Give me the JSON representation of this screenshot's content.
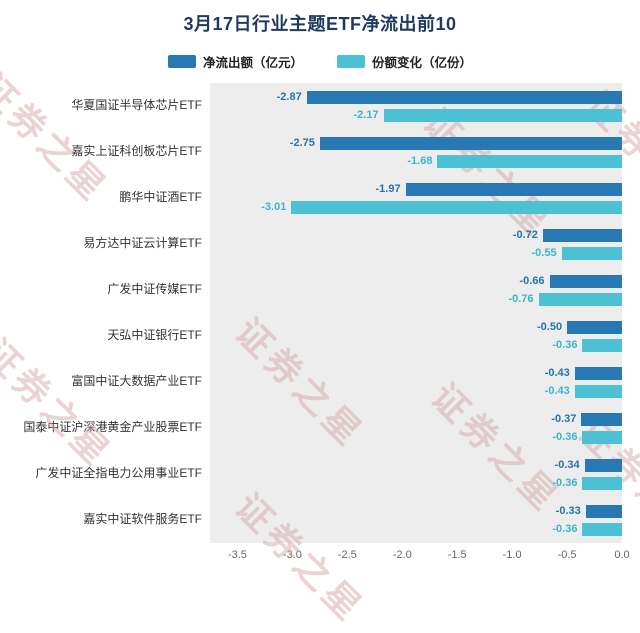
{
  "title": "3月17日行业主题ETF净流出前10",
  "watermark": "证券之星",
  "legend": [
    {
      "label": "净流出额（亿元）",
      "color": "#2878b4",
      "label_color": "#2474ab"
    },
    {
      "label": "份额变化（亿份）",
      "color": "#4cc1d4",
      "label_color": "#38b6cc"
    }
  ],
  "chart_data": {
    "type": "bar",
    "orientation": "horizontal",
    "title": "3月17日行业主题ETF净流出前10",
    "categories": [
      "华夏国证半导体芯片ETF",
      "嘉实上证科创板芯片ETF",
      "鹏华中证酒ETF",
      "易方达中证云计算ETF",
      "广发中证传媒ETF",
      "天弘中证银行ETF",
      "富国中证大数据产业ETF",
      "国泰中证沪深港黄金产业股票ETF",
      "广发中证全指电力公用事业ETF",
      "嘉实中证软件服务ETF"
    ],
    "series": [
      {
        "name": "净流出额（亿元）",
        "color": "#2878b4",
        "label_color": "#2474ab",
        "values": [
          -2.87,
          -2.75,
          -1.97,
          -0.72,
          -0.66,
          -0.5,
          -0.43,
          -0.37,
          -0.34,
          -0.33
        ]
      },
      {
        "name": "份额变化（亿份）",
        "color": "#4cc1d4",
        "label_color": "#38b6cc",
        "values": [
          -2.17,
          -1.68,
          -3.01,
          -0.55,
          -0.76,
          -0.36,
          -0.43,
          -0.36,
          -0.36,
          -0.36
        ]
      }
    ],
    "xlim": [
      -3.75,
      0
    ],
    "x_ticks": [
      "-3.5",
      "-3.0",
      "-2.5",
      "-2.0",
      "-1.5",
      "-1.0",
      "-0.5",
      "0.0"
    ],
    "grid": false,
    "legend_position": "top",
    "plot_background": "#ededed"
  }
}
